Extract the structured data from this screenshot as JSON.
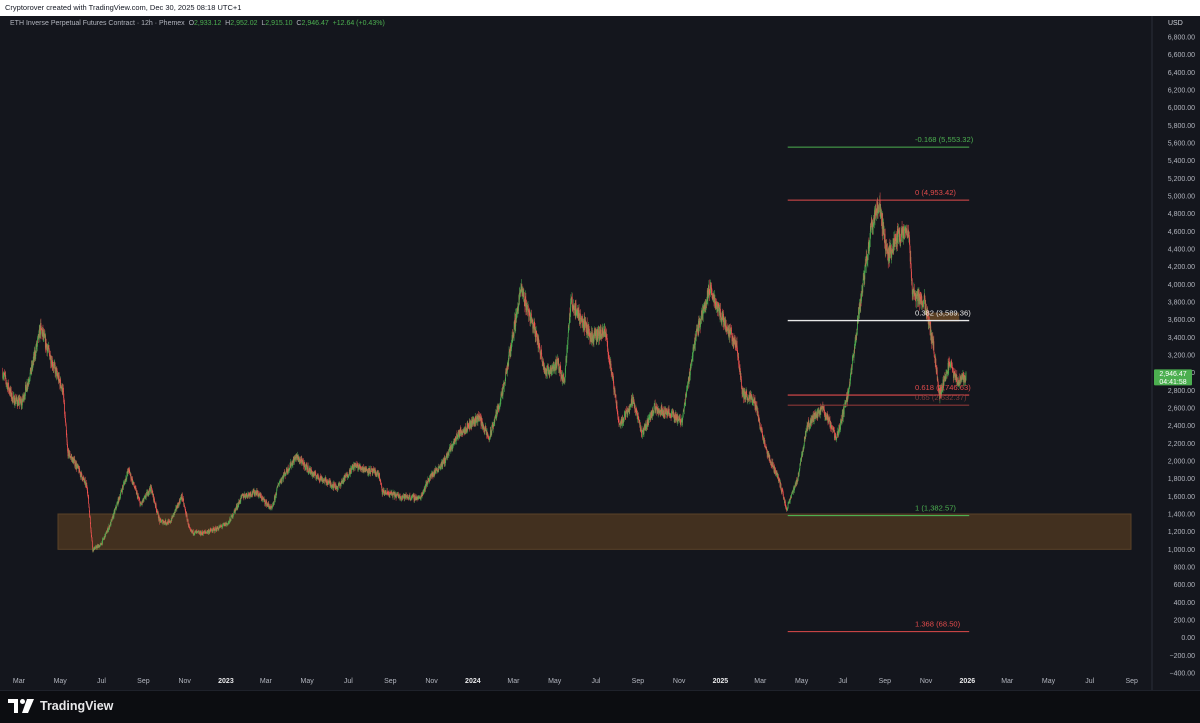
{
  "header": {
    "credit": "Cryptorover created with TradingView.com, Dec 30, 2025 08:18 UTC+1"
  },
  "legend": {
    "title": "ETH Inverse Perpetual Futures Contract · 12h · Phemex",
    "o_label": "O",
    "o_value": "2,933.12",
    "h_label": "H",
    "h_value": "2,952.02",
    "l_label": "L",
    "l_value": "2,915.10",
    "c_label": "C",
    "c_value": "2,946.47",
    "change": "+12.64 (+0.43%)"
  },
  "price_scale": {
    "currency": "USD",
    "last_price": "2,946.47",
    "countdown": "04:41:58"
  },
  "footer": {
    "brand": "TradingView"
  },
  "colors": {
    "up": "#4caf50",
    "down": "#f05350",
    "background": "#14161d",
    "zone": "#4a3520",
    "fib_green": "#4caf50",
    "fib_red": "#e04b4b",
    "fib_white": "#e8e8e8"
  },
  "chart_data": {
    "type": "candlestick",
    "timeframe": "12h",
    "y_axis": {
      "min": -400,
      "max": 6800,
      "step": 200,
      "tick_labels": [
        "−400.00",
        "−200.00",
        "0.00",
        "200.00",
        "400.00",
        "600.00",
        "800.00",
        "1,000.00",
        "1,200.00",
        "1,400.00",
        "1,600.00",
        "1,800.00",
        "2,000.00",
        "2,200.00",
        "2,400.00",
        "2,600.00",
        "2,800.00",
        "3,000.00",
        "3,200.00",
        "3,400.00",
        "3,600.00",
        "3,800.00",
        "4,000.00",
        "4,200.00",
        "4,400.00",
        "4,600.00",
        "4,800.00",
        "5,000.00",
        "5,200.00",
        "5,400.00",
        "5,600.00",
        "5,800.00",
        "6,000.00",
        "6,200.00",
        "6,400.00",
        "6,600.00",
        "6,800.00"
      ]
    },
    "x_axis": {
      "start": "2022-02",
      "end": "2026-10",
      "ticks": [
        {
          "date": "2022-03",
          "label": "Mar",
          "bold": false
        },
        {
          "date": "2022-05",
          "label": "May",
          "bold": false
        },
        {
          "date": "2022-07",
          "label": "Jul",
          "bold": false
        },
        {
          "date": "2022-09",
          "label": "Sep",
          "bold": false
        },
        {
          "date": "2022-11",
          "label": "Nov",
          "bold": false
        },
        {
          "date": "2023-01",
          "label": "2023",
          "bold": true
        },
        {
          "date": "2023-03",
          "label": "Mar",
          "bold": false
        },
        {
          "date": "2023-05",
          "label": "May",
          "bold": false
        },
        {
          "date": "2023-07",
          "label": "Jul",
          "bold": false
        },
        {
          "date": "2023-09",
          "label": "Sep",
          "bold": false
        },
        {
          "date": "2023-11",
          "label": "Nov",
          "bold": false
        },
        {
          "date": "2024-01",
          "label": "2024",
          "bold": true
        },
        {
          "date": "2024-03",
          "label": "Mar",
          "bold": false
        },
        {
          "date": "2024-05",
          "label": "May",
          "bold": false
        },
        {
          "date": "2024-07",
          "label": "Jul",
          "bold": false
        },
        {
          "date": "2024-09",
          "label": "Sep",
          "bold": false
        },
        {
          "date": "2024-11",
          "label": "Nov",
          "bold": false
        },
        {
          "date": "2025-01",
          "label": "2025",
          "bold": true
        },
        {
          "date": "2025-03",
          "label": "Mar",
          "bold": false
        },
        {
          "date": "2025-05",
          "label": "May",
          "bold": false
        },
        {
          "date": "2025-07",
          "label": "Jul",
          "bold": false
        },
        {
          "date": "2025-09",
          "label": "Sep",
          "bold": false
        },
        {
          "date": "2025-11",
          "label": "Nov",
          "bold": false
        },
        {
          "date": "2026-01",
          "label": "2026",
          "bold": true
        },
        {
          "date": "2026-03",
          "label": "Mar",
          "bold": false
        },
        {
          "date": "2026-05",
          "label": "May",
          "bold": false
        },
        {
          "date": "2026-07",
          "label": "Jul",
          "bold": false
        },
        {
          "date": "2026-09",
          "label": "Sep",
          "bold": false
        }
      ]
    },
    "price_path": [
      {
        "date": "2022-02-05",
        "close": 3000
      },
      {
        "date": "2022-02-20",
        "close": 2700
      },
      {
        "date": "2022-03-05",
        "close": 2650
      },
      {
        "date": "2022-03-20",
        "close": 3050
      },
      {
        "date": "2022-04-02",
        "close": 3500
      },
      {
        "date": "2022-04-20",
        "close": 3100
      },
      {
        "date": "2022-05-05",
        "close": 2800
      },
      {
        "date": "2022-05-12",
        "close": 2100
      },
      {
        "date": "2022-05-25",
        "close": 1950
      },
      {
        "date": "2022-06-10",
        "close": 1700
      },
      {
        "date": "2022-06-18",
        "close": 1000
      },
      {
        "date": "2022-06-30",
        "close": 1050
      },
      {
        "date": "2022-07-15",
        "close": 1300
      },
      {
        "date": "2022-08-10",
        "close": 1900
      },
      {
        "date": "2022-08-28",
        "close": 1500
      },
      {
        "date": "2022-09-12",
        "close": 1700
      },
      {
        "date": "2022-09-25",
        "close": 1320
      },
      {
        "date": "2022-10-10",
        "close": 1300
      },
      {
        "date": "2022-10-28",
        "close": 1600
      },
      {
        "date": "2022-11-09",
        "close": 1200
      },
      {
        "date": "2022-11-25",
        "close": 1180
      },
      {
        "date": "2022-12-15",
        "close": 1220
      },
      {
        "date": "2023-01-05",
        "close": 1300
      },
      {
        "date": "2023-01-25",
        "close": 1600
      },
      {
        "date": "2023-02-15",
        "close": 1650
      },
      {
        "date": "2023-03-10",
        "close": 1450
      },
      {
        "date": "2023-03-20",
        "close": 1750
      },
      {
        "date": "2023-04-15",
        "close": 2050
      },
      {
        "date": "2023-05-10",
        "close": 1850
      },
      {
        "date": "2023-06-15",
        "close": 1700
      },
      {
        "date": "2023-07-10",
        "close": 1950
      },
      {
        "date": "2023-08-15",
        "close": 1850
      },
      {
        "date": "2023-08-20",
        "close": 1650
      },
      {
        "date": "2023-09-15",
        "close": 1600
      },
      {
        "date": "2023-10-15",
        "close": 1580
      },
      {
        "date": "2023-10-28",
        "close": 1800
      },
      {
        "date": "2023-11-20",
        "close": 2000
      },
      {
        "date": "2023-12-10",
        "close": 2300
      },
      {
        "date": "2024-01-10",
        "close": 2500
      },
      {
        "date": "2024-01-25",
        "close": 2250
      },
      {
        "date": "2024-02-15",
        "close": 2800
      },
      {
        "date": "2024-03-12",
        "close": 3950
      },
      {
        "date": "2024-04-01",
        "close": 3500
      },
      {
        "date": "2024-04-18",
        "close": 3000
      },
      {
        "date": "2024-05-05",
        "close": 3100
      },
      {
        "date": "2024-05-15",
        "close": 2900
      },
      {
        "date": "2024-05-25",
        "close": 3800
      },
      {
        "date": "2024-06-10",
        "close": 3600
      },
      {
        "date": "2024-06-25",
        "close": 3400
      },
      {
        "date": "2024-07-15",
        "close": 3450
      },
      {
        "date": "2024-08-05",
        "close": 2400
      },
      {
        "date": "2024-08-25",
        "close": 2700
      },
      {
        "date": "2024-09-07",
        "close": 2300
      },
      {
        "date": "2024-09-25",
        "close": 2600
      },
      {
        "date": "2024-10-15",
        "close": 2550
      },
      {
        "date": "2024-11-05",
        "close": 2450
      },
      {
        "date": "2024-11-25",
        "close": 3400
      },
      {
        "date": "2024-12-16",
        "close": 3950
      },
      {
        "date": "2025-01-05",
        "close": 3600
      },
      {
        "date": "2025-01-25",
        "close": 3300
      },
      {
        "date": "2025-02-03",
        "close": 2750
      },
      {
        "date": "2025-02-20",
        "close": 2700
      },
      {
        "date": "2025-03-10",
        "close": 2100
      },
      {
        "date": "2025-03-28",
        "close": 1800
      },
      {
        "date": "2025-04-09",
        "close": 1450
      },
      {
        "date": "2025-04-25",
        "close": 1800
      },
      {
        "date": "2025-05-09",
        "close": 2400
      },
      {
        "date": "2025-06-01",
        "close": 2600
      },
      {
        "date": "2025-06-22",
        "close": 2250
      },
      {
        "date": "2025-07-10",
        "close": 2800
      },
      {
        "date": "2025-07-25",
        "close": 3700
      },
      {
        "date": "2025-08-13",
        "close": 4700
      },
      {
        "date": "2025-08-24",
        "close": 4900
      },
      {
        "date": "2025-09-05",
        "close": 4300
      },
      {
        "date": "2025-09-20",
        "close": 4550
      },
      {
        "date": "2025-10-06",
        "close": 4600
      },
      {
        "date": "2025-10-12",
        "close": 3900
      },
      {
        "date": "2025-10-30",
        "close": 3800
      },
      {
        "date": "2025-11-12",
        "close": 3300
      },
      {
        "date": "2025-11-21",
        "close": 2750
      },
      {
        "date": "2025-12-05",
        "close": 3100
      },
      {
        "date": "2025-12-18",
        "close": 2900
      },
      {
        "date": "2025-12-30",
        "close": 2946
      }
    ],
    "zones": [
      {
        "start": "2022-02",
        "end": "2026-09",
        "low": 1000,
        "high": 1400
      },
      {
        "start": "2025-11-01",
        "end": "2025-12-20",
        "low": 3580,
        "high": 3680
      }
    ],
    "fib_levels": [
      {
        "label": "-0.168 (5,553.32)",
        "value": 5553.32,
        "color": "green",
        "start": "2025-04-09",
        "end": "2025-12-20"
      },
      {
        "label": "0 (4,953.42)",
        "value": 4953.42,
        "color": "red",
        "start": "2025-04-09",
        "end": "2025-12-20"
      },
      {
        "label": "0.382 (3,589.36)",
        "value": 3589.36,
        "color": "white",
        "start": "2025-04-09",
        "end": "2025-12-20"
      },
      {
        "label": "0.618 (2,746.63)",
        "value": 2746.63,
        "color": "red",
        "start": "2025-04-09",
        "end": "2025-12-20"
      },
      {
        "label": "0.65 (2,632.37)",
        "value": 2632.37,
        "color": "darkred",
        "start": "2025-04-09",
        "end": "2025-12-20"
      },
      {
        "label": "1 (1,382.57)",
        "value": 1382.57,
        "color": "green",
        "start": "2025-04-09",
        "end": "2025-12-20"
      },
      {
        "label": "1.368 (68.50)",
        "value": 68.5,
        "color": "red",
        "start": "2025-04-09",
        "end": "2025-12-20"
      }
    ]
  }
}
